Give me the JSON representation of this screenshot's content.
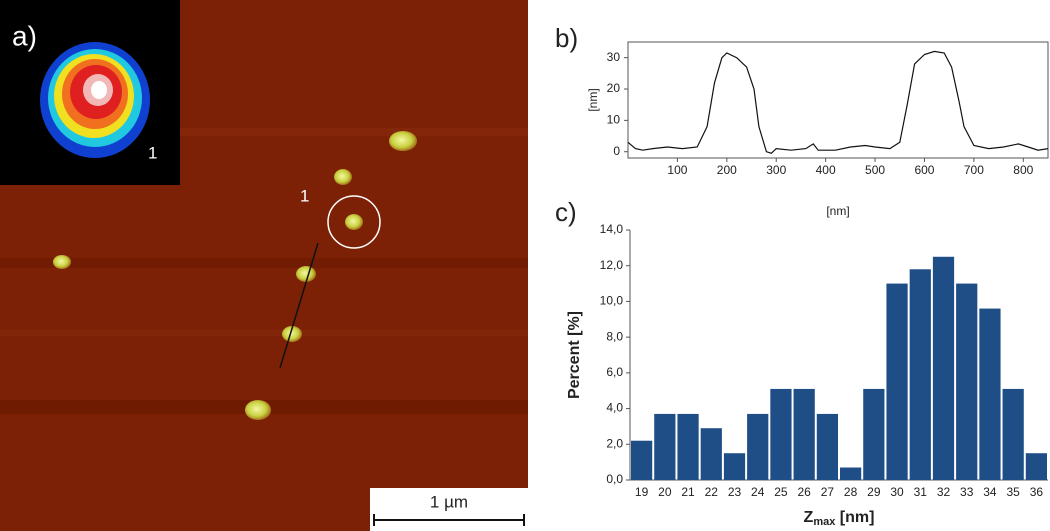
{
  "image": {
    "panel_label": "a)",
    "inset_label": "1",
    "particle_label": "1",
    "scale_bar": "1 µm"
  },
  "chart_data": [
    {
      "type": "line",
      "panel_label": "b)",
      "xlabel": "[nm]",
      "ylabel": "[nm]",
      "color": "#111111",
      "x": [
        0,
        15,
        30,
        50,
        80,
        110,
        140,
        160,
        175,
        190,
        200,
        220,
        240,
        255,
        265,
        280,
        290,
        300,
        330,
        360,
        375,
        385,
        420,
        450,
        480,
        500,
        530,
        550,
        565,
        580,
        600,
        620,
        640,
        655,
        670,
        680,
        700,
        730,
        760,
        790,
        810,
        830,
        850
      ],
      "values": [
        3,
        1,
        0.5,
        1,
        1.5,
        1,
        1.5,
        8,
        22,
        30,
        31.5,
        30,
        27,
        20,
        8,
        0,
        -0.5,
        1,
        0.5,
        1,
        2.5,
        0.5,
        0.5,
        1.5,
        2,
        1.5,
        1,
        3,
        15,
        28,
        31,
        32,
        31.5,
        27,
        16,
        8,
        2,
        1,
        1.5,
        2.5,
        1.5,
        0.5,
        1
      ],
      "xlim": [
        0,
        850
      ],
      "ylim": [
        -2,
        35
      ],
      "xticks": [
        100,
        200,
        300,
        400,
        500,
        600,
        700,
        800
      ],
      "yticks": [
        0,
        10,
        20,
        30
      ],
      "grid": false
    },
    {
      "type": "bar",
      "panel_label": "c)",
      "ylabel": "Percent [%]",
      "xlabel": {
        "symbol": "Z",
        "subscript": "max",
        "unit": " [nm]"
      },
      "color": "#1f4e86",
      "categories": [
        "19",
        "20",
        "21",
        "22",
        "23",
        "24",
        "25",
        "26",
        "27",
        "28",
        "29",
        "30",
        "31",
        "32",
        "33",
        "34",
        "35",
        "36"
      ],
      "values": [
        2.2,
        3.7,
        3.7,
        2.9,
        1.5,
        3.7,
        5.1,
        5.1,
        3.7,
        0.7,
        5.1,
        11.0,
        11.8,
        12.5,
        11.0,
        9.6,
        5.1,
        1.5
      ],
      "ylim": [
        0,
        14
      ],
      "yticks": [
        {
          "value": 0,
          "label": "0,0"
        },
        {
          "value": 2,
          "label": "2,0"
        },
        {
          "value": 4,
          "label": "4,0"
        },
        {
          "value": 6,
          "label": "6,0"
        },
        {
          "value": 8,
          "label": "8,0"
        },
        {
          "value": 10,
          "label": "10,0"
        },
        {
          "value": 12,
          "label": "12,0"
        },
        {
          "value": 14,
          "label": "14,0"
        }
      ],
      "grid": false
    }
  ]
}
